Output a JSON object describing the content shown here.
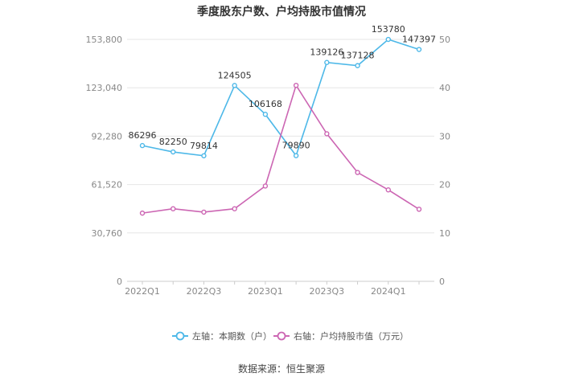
{
  "chart_data": {
    "type": "line",
    "title": "季度股东户数、户均持股市值情况",
    "categories": [
      "2022Q1",
      "2022Q2",
      "2022Q3",
      "2022Q4",
      "2023Q1",
      "2023Q2",
      "2023Q3",
      "2023Q4",
      "2024Q1",
      "2024Q2"
    ],
    "x_tick_labels": [
      "2022Q1",
      "2022Q3",
      "2023Q1",
      "2023Q3",
      "2024Q1"
    ],
    "left_axis": {
      "ylim": [
        0,
        153800
      ],
      "ticks": [
        "0",
        "30,760",
        "61,520",
        "92,280",
        "123,040",
        "153,800"
      ]
    },
    "right_axis": {
      "ylim": [
        0,
        50
      ],
      "ticks": [
        "0",
        "10",
        "20",
        "30",
        "40",
        "50"
      ]
    },
    "series": [
      {
        "name": "左轴：本期数（户）",
        "axis": "left",
        "color": "#4db8e8",
        "values": [
          86296,
          82250,
          79814,
          124505,
          106168,
          79890,
          139126,
          137128,
          153780,
          147397
        ],
        "labels": [
          "86296",
          "82250",
          "79814",
          "124505",
          "106168",
          "79890",
          "139126",
          "137128",
          "153780",
          "147397"
        ]
      },
      {
        "name": "右轴：户均持股市值（万元）",
        "axis": "right",
        "color": "#cc66b3",
        "values": [
          14.1,
          15.0,
          14.3,
          15.0,
          19.7,
          40.5,
          30.5,
          22.5,
          18.9,
          14.9
        ]
      }
    ],
    "grid": true,
    "legend": "bottom",
    "source": "数据来源：恒生聚源"
  }
}
